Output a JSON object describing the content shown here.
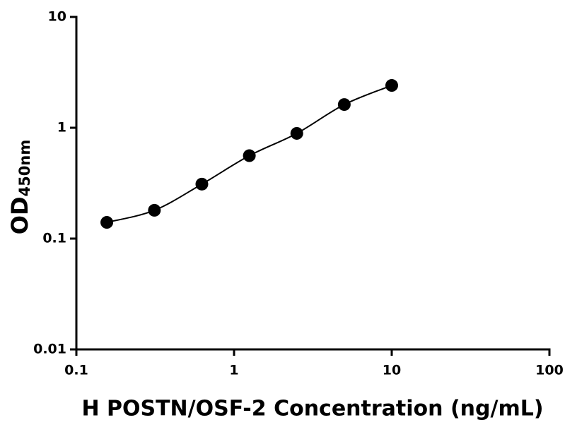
{
  "chart_data": {
    "type": "scatter",
    "x_label": "H POSTN/OSF-2 Concentration (ng/mL)",
    "y_label": {
      "main": "OD",
      "sub": "450nm"
    },
    "x": [
      0.156,
      0.3125,
      0.625,
      1.25,
      2.5,
      5,
      10
    ],
    "series": [
      {
        "name": "H POSTN/OSF-2",
        "color": "#000000",
        "values": [
          0.14,
          0.18,
          0.31,
          0.56,
          0.89,
          1.62,
          2.41
        ]
      }
    ],
    "xlim": [
      0.1,
      100
    ],
    "xticks": [
      0.1,
      1,
      10,
      100
    ],
    "ylim": [
      0.01,
      10
    ],
    "yticks": [
      0.01,
      0.1,
      1,
      10
    ],
    "xscale": "log",
    "yscale": "log",
    "fit_curve": true,
    "grid": false
  }
}
